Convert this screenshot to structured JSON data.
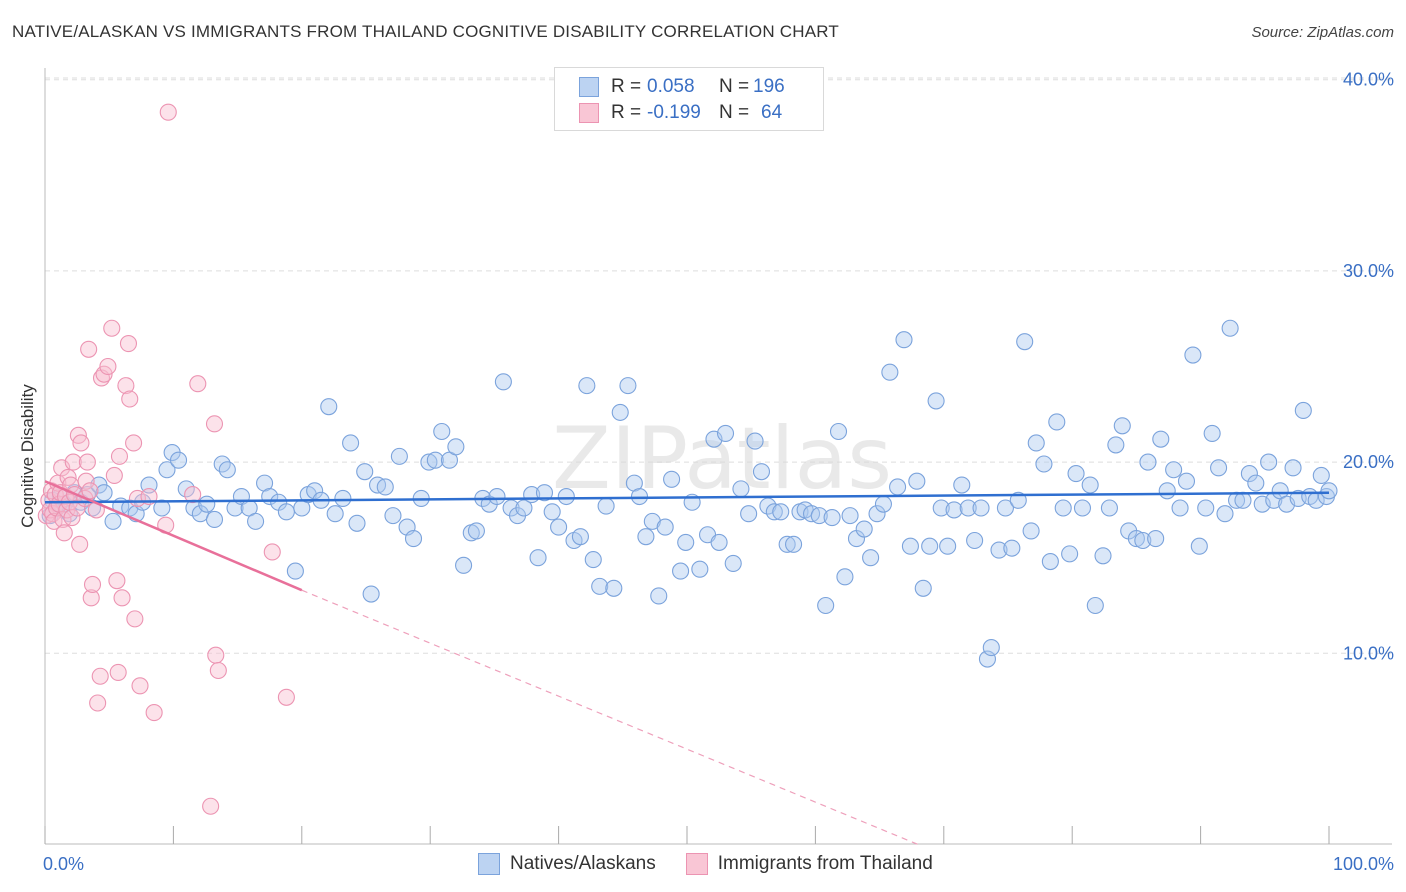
{
  "title": "NATIVE/ALASKAN VS IMMIGRANTS FROM THAILAND COGNITIVE DISABILITY CORRELATION CHART",
  "source": "Source: ZipAtlas.com",
  "legend_stats": {
    "r_label": "R =",
    "n_label": "N =",
    "rows": [
      {
        "r": "0.058",
        "n": "196",
        "fill": "#bcd3f2",
        "stroke": "#7ba3dc"
      },
      {
        "r": "-0.199",
        "n": "64",
        "fill": "#f9c6d5",
        "stroke": "#ec94b2"
      }
    ]
  },
  "colors": {
    "blue": "#3a6fc4",
    "blue_line": "#2f6fd0",
    "pink_line": "#e8709a",
    "grid": "#dddddd"
  },
  "chart_data": {
    "type": "scatter",
    "title": "NATIVE/ALASKAN VS IMMIGRANTS FROM THAILAND COGNITIVE DISABILITY CORRELATION CHART",
    "xlabel": "",
    "ylabel": "Cognitive Disability",
    "xlim": [
      0,
      100
    ],
    "ylim": [
      0,
      41
    ],
    "x_tick_labels": [
      "0.0%",
      "100.0%"
    ],
    "y_ticks": [
      10,
      20,
      30,
      40
    ],
    "y_tick_labels": [
      "10.0%",
      "20.0%",
      "30.0%",
      "40.0%"
    ],
    "watermark": "ZIPatlas",
    "series": [
      {
        "name": "Natives/Alaskans",
        "r": 0.058,
        "n": 196,
        "trend": {
          "x": [
            0,
            100
          ],
          "y": [
            17.9,
            18.4
          ]
        },
        "points": [
          [
            0.4,
            17.2
          ],
          [
            0.6,
            18.0
          ],
          [
            0.9,
            17.6
          ],
          [
            1.2,
            18.2
          ],
          [
            1.5,
            17.8
          ],
          [
            1.9,
            17.3
          ],
          [
            2.3,
            18.4
          ],
          [
            2.8,
            17.9
          ],
          [
            3.3,
            18.3
          ],
          [
            3.7,
            17.6
          ],
          [
            4.2,
            18.8
          ],
          [
            4.6,
            18.4
          ],
          [
            5.3,
            16.9
          ],
          [
            5.9,
            17.7
          ],
          [
            6.6,
            17.6
          ],
          [
            7.1,
            17.3
          ],
          [
            7.6,
            17.9
          ],
          [
            8.1,
            18.8
          ],
          [
            9.1,
            17.6
          ],
          [
            9.5,
            19.6
          ],
          [
            9.9,
            20.5
          ],
          [
            10.4,
            20.1
          ],
          [
            11.0,
            18.6
          ],
          [
            11.6,
            17.6
          ],
          [
            12.1,
            17.3
          ],
          [
            12.6,
            17.8
          ],
          [
            13.2,
            17.0
          ],
          [
            13.8,
            19.9
          ],
          [
            14.2,
            19.6
          ],
          [
            14.8,
            17.6
          ],
          [
            15.3,
            18.2
          ],
          [
            15.9,
            17.6
          ],
          [
            16.4,
            16.9
          ],
          [
            17.1,
            18.9
          ],
          [
            17.5,
            18.2
          ],
          [
            18.2,
            17.9
          ],
          [
            18.8,
            17.4
          ],
          [
            19.5,
            14.3
          ],
          [
            20.0,
            17.6
          ],
          [
            20.5,
            18.3
          ],
          [
            21.0,
            18.5
          ],
          [
            21.5,
            18.0
          ],
          [
            22.1,
            22.9
          ],
          [
            22.6,
            17.3
          ],
          [
            23.2,
            18.1
          ],
          [
            23.8,
            21.0
          ],
          [
            24.3,
            16.8
          ],
          [
            24.9,
            19.5
          ],
          [
            25.4,
            13.1
          ],
          [
            25.9,
            18.8
          ],
          [
            26.5,
            18.7
          ],
          [
            27.1,
            17.2
          ],
          [
            27.6,
            20.3
          ],
          [
            28.2,
            16.6
          ],
          [
            28.7,
            16.0
          ],
          [
            29.3,
            18.1
          ],
          [
            29.9,
            20.0
          ],
          [
            30.4,
            20.1
          ],
          [
            30.9,
            21.6
          ],
          [
            31.5,
            20.1
          ],
          [
            32.0,
            20.8
          ],
          [
            32.6,
            14.6
          ],
          [
            33.2,
            16.3
          ],
          [
            33.6,
            16.4
          ],
          [
            34.1,
            18.1
          ],
          [
            34.6,
            17.8
          ],
          [
            35.2,
            18.2
          ],
          [
            35.7,
            24.2
          ],
          [
            36.3,
            17.6
          ],
          [
            36.8,
            17.2
          ],
          [
            37.3,
            17.6
          ],
          [
            37.9,
            18.3
          ],
          [
            38.4,
            15.0
          ],
          [
            38.9,
            18.4
          ],
          [
            39.5,
            17.4
          ],
          [
            40.0,
            16.6
          ],
          [
            40.6,
            18.2
          ],
          [
            41.2,
            15.9
          ],
          [
            41.7,
            16.1
          ],
          [
            42.2,
            24.0
          ],
          [
            42.7,
            14.9
          ],
          [
            43.2,
            13.5
          ],
          [
            43.7,
            17.7
          ],
          [
            44.3,
            13.4
          ],
          [
            44.8,
            22.6
          ],
          [
            45.4,
            24.0
          ],
          [
            45.9,
            18.9
          ],
          [
            46.3,
            18.2
          ],
          [
            46.8,
            16.1
          ],
          [
            47.3,
            16.9
          ],
          [
            47.8,
            13.0
          ],
          [
            48.3,
            16.6
          ],
          [
            48.8,
            19.1
          ],
          [
            49.5,
            14.3
          ],
          [
            49.9,
            15.8
          ],
          [
            50.4,
            17.9
          ],
          [
            51.0,
            14.4
          ],
          [
            51.6,
            16.2
          ],
          [
            52.1,
            21.2
          ],
          [
            52.5,
            15.8
          ],
          [
            53.0,
            21.5
          ],
          [
            53.6,
            14.7
          ],
          [
            54.2,
            18.6
          ],
          [
            54.8,
            17.3
          ],
          [
            55.3,
            21.1
          ],
          [
            55.8,
            19.5
          ],
          [
            56.3,
            17.7
          ],
          [
            56.8,
            17.4
          ],
          [
            57.3,
            17.4
          ],
          [
            57.8,
            15.7
          ],
          [
            58.3,
            15.7
          ],
          [
            58.8,
            17.4
          ],
          [
            59.2,
            17.5
          ],
          [
            59.7,
            17.3
          ],
          [
            60.3,
            17.2
          ],
          [
            60.8,
            12.5
          ],
          [
            61.3,
            17.1
          ],
          [
            61.8,
            21.6
          ],
          [
            62.3,
            14.0
          ],
          [
            62.7,
            17.2
          ],
          [
            63.2,
            16.0
          ],
          [
            63.8,
            16.5
          ],
          [
            64.3,
            15.0
          ],
          [
            64.8,
            17.3
          ],
          [
            65.3,
            17.8
          ],
          [
            65.8,
            24.7
          ],
          [
            66.4,
            18.7
          ],
          [
            66.9,
            26.4
          ],
          [
            67.4,
            15.6
          ],
          [
            67.9,
            19.0
          ],
          [
            68.4,
            13.4
          ],
          [
            68.9,
            15.6
          ],
          [
            69.4,
            23.2
          ],
          [
            69.8,
            17.6
          ],
          [
            70.3,
            15.6
          ],
          [
            70.8,
            17.5
          ],
          [
            71.4,
            18.8
          ],
          [
            71.9,
            17.6
          ],
          [
            72.4,
            15.9
          ],
          [
            72.9,
            17.6
          ],
          [
            73.4,
            9.7
          ],
          [
            73.7,
            10.3
          ],
          [
            74.3,
            15.4
          ],
          [
            74.8,
            17.6
          ],
          [
            75.3,
            15.5
          ],
          [
            75.8,
            18.0
          ],
          [
            76.3,
            26.3
          ],
          [
            76.8,
            16.4
          ],
          [
            77.2,
            21.0
          ],
          [
            77.8,
            19.9
          ],
          [
            78.3,
            14.8
          ],
          [
            78.8,
            22.1
          ],
          [
            79.3,
            17.6
          ],
          [
            79.8,
            15.2
          ],
          [
            80.3,
            19.4
          ],
          [
            80.8,
            17.6
          ],
          [
            81.4,
            18.8
          ],
          [
            81.8,
            12.5
          ],
          [
            82.4,
            15.1
          ],
          [
            82.9,
            17.6
          ],
          [
            83.4,
            20.9
          ],
          [
            83.9,
            21.9
          ],
          [
            84.4,
            16.4
          ],
          [
            85.0,
            16.0
          ],
          [
            85.5,
            15.9
          ],
          [
            85.9,
            20.0
          ],
          [
            86.5,
            16.0
          ],
          [
            86.9,
            21.2
          ],
          [
            87.4,
            18.5
          ],
          [
            87.9,
            19.6
          ],
          [
            88.4,
            17.6
          ],
          [
            88.9,
            19.0
          ],
          [
            89.4,
            25.6
          ],
          [
            89.9,
            15.6
          ],
          [
            90.4,
            17.6
          ],
          [
            90.9,
            21.5
          ],
          [
            91.4,
            19.7
          ],
          [
            91.9,
            17.3
          ],
          [
            92.3,
            27.0
          ],
          [
            92.8,
            18.0
          ],
          [
            93.3,
            18.0
          ],
          [
            93.8,
            19.4
          ],
          [
            94.3,
            18.9
          ],
          [
            94.8,
            17.8
          ],
          [
            95.3,
            20.0
          ],
          [
            95.7,
            18.0
          ],
          [
            96.2,
            18.5
          ],
          [
            96.7,
            17.8
          ],
          [
            97.2,
            19.7
          ],
          [
            97.6,
            18.1
          ],
          [
            98.0,
            22.7
          ],
          [
            98.5,
            18.2
          ],
          [
            99.0,
            18.0
          ],
          [
            99.4,
            19.3
          ],
          [
            99.8,
            18.2
          ],
          [
            100.0,
            18.5
          ]
        ]
      },
      {
        "name": "Immigrants from Thailand",
        "r": -0.199,
        "n": 64,
        "trend": {
          "x": [
            0,
            20
          ],
          "y": [
            19.0,
            13.3
          ]
        },
        "trend_ext": {
          "x": [
            20,
            68
          ],
          "y": [
            13.3,
            0
          ]
        },
        "points": [
          [
            0.1,
            17.2
          ],
          [
            0.3,
            18.0
          ],
          [
            0.4,
            17.5
          ],
          [
            0.5,
            18.5
          ],
          [
            0.6,
            17.3
          ],
          [
            0.7,
            16.9
          ],
          [
            0.8,
            18.3
          ],
          [
            0.9,
            17.6
          ],
          [
            1.0,
            18.9
          ],
          [
            1.1,
            17.8
          ],
          [
            1.2,
            18.4
          ],
          [
            1.3,
            19.7
          ],
          [
            1.4,
            17.0
          ],
          [
            1.5,
            16.3
          ],
          [
            1.6,
            18.2
          ],
          [
            1.7,
            17.5
          ],
          [
            1.8,
            19.2
          ],
          [
            1.9,
            17.9
          ],
          [
            2.0,
            18.8
          ],
          [
            2.1,
            17.1
          ],
          [
            2.2,
            20.0
          ],
          [
            2.3,
            18.3
          ],
          [
            2.5,
            17.6
          ],
          [
            2.6,
            21.4
          ],
          [
            2.7,
            15.7
          ],
          [
            2.8,
            21.0
          ],
          [
            3.1,
            18.1
          ],
          [
            3.2,
            19.0
          ],
          [
            3.3,
            20.0
          ],
          [
            3.4,
            25.9
          ],
          [
            3.5,
            18.5
          ],
          [
            3.6,
            12.9
          ],
          [
            3.7,
            13.6
          ],
          [
            4.0,
            17.5
          ],
          [
            4.1,
            7.4
          ],
          [
            4.3,
            8.8
          ],
          [
            4.4,
            24.4
          ],
          [
            4.6,
            24.6
          ],
          [
            4.9,
            25.0
          ],
          [
            5.2,
            27.0
          ],
          [
            5.4,
            19.3
          ],
          [
            5.6,
            13.8
          ],
          [
            5.7,
            9.0
          ],
          [
            5.8,
            20.3
          ],
          [
            6.0,
            12.9
          ],
          [
            6.3,
            24.0
          ],
          [
            6.5,
            26.2
          ],
          [
            6.6,
            23.3
          ],
          [
            6.9,
            21.0
          ],
          [
            7.0,
            11.8
          ],
          [
            7.2,
            18.1
          ],
          [
            7.4,
            8.3
          ],
          [
            8.1,
            18.2
          ],
          [
            8.5,
            6.9
          ],
          [
            9.4,
            16.7
          ],
          [
            9.6,
            38.3
          ],
          [
            11.5,
            18.3
          ],
          [
            11.9,
            24.1
          ],
          [
            12.9,
            2.0
          ],
          [
            13.2,
            22.0
          ],
          [
            13.3,
            9.9
          ],
          [
            13.5,
            9.1
          ],
          [
            17.7,
            15.3
          ],
          [
            18.8,
            7.7
          ]
        ]
      }
    ]
  }
}
